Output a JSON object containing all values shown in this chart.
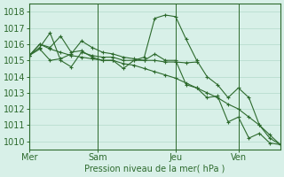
{
  "bg_color": "#d8f0e8",
  "grid_color": "#b8ddd0",
  "line_color": "#2d6a2d",
  "marker": "+",
  "xlabel": "Pression niveau de la mer( hPa )",
  "ylim": [
    1009.5,
    1018.5
  ],
  "yticks": [
    1010,
    1011,
    1012,
    1013,
    1014,
    1015,
    1016,
    1017,
    1018
  ],
  "day_labels": [
    "Mer",
    "Sam",
    "Jeu",
    "Ven"
  ],
  "day_positions": [
    0.0,
    0.273,
    0.583,
    0.833
  ],
  "xlim": [
    0,
    1.0
  ],
  "series": [
    {
      "x": [
        0.0,
        0.042,
        0.083,
        0.125,
        0.167,
        0.208,
        0.25,
        0.292,
        0.333,
        0.375,
        0.417,
        0.458,
        0.5,
        0.542,
        0.583,
        0.625,
        0.667,
        0.708,
        0.75,
        0.792,
        0.833,
        0.875,
        0.917,
        0.958,
        1.0
      ],
      "y": [
        1015.3,
        1016.0,
        1015.7,
        1015.5,
        1015.3,
        1015.2,
        1015.1,
        1015.0,
        1015.0,
        1014.8,
        1014.7,
        1014.5,
        1014.3,
        1014.1,
        1013.9,
        1013.6,
        1013.3,
        1013.0,
        1012.7,
        1012.3,
        1012.0,
        1011.5,
        1011.0,
        1010.4,
        1009.8
      ]
    },
    {
      "x": [
        0.0,
        0.042,
        0.083,
        0.125,
        0.167,
        0.208,
        0.25,
        0.292,
        0.333,
        0.375,
        0.417,
        0.458,
        0.5,
        0.542,
        0.583,
        0.625,
        0.667
      ],
      "y": [
        1015.3,
        1015.7,
        1015.0,
        1015.1,
        1015.4,
        1016.2,
        1015.8,
        1015.5,
        1015.4,
        1015.2,
        1015.1,
        1015.0,
        1015.0,
        1014.9,
        1014.9,
        1014.85,
        1014.9
      ]
    },
    {
      "x": [
        0.0,
        0.042,
        0.083,
        0.125,
        0.167,
        0.208,
        0.25,
        0.292,
        0.333,
        0.375,
        0.417,
        0.458,
        0.5,
        0.542,
        0.583,
        0.625,
        0.667,
        0.708,
        0.75,
        0.792,
        0.833,
        0.875,
        0.917,
        0.958,
        1.0
      ],
      "y": [
        1015.3,
        1016.0,
        1015.8,
        1016.5,
        1015.5,
        1015.6,
        1015.2,
        1015.0,
        1015.0,
        1014.5,
        1015.0,
        1015.2,
        1017.6,
        1017.8,
        1017.7,
        1016.3,
        1015.0,
        1014.0,
        1013.5,
        1012.7,
        1013.3,
        1012.7,
        1011.0,
        1010.2,
        1009.8
      ]
    },
    {
      "x": [
        0.0,
        0.042,
        0.083,
        0.125,
        0.167,
        0.208,
        0.25,
        0.292,
        0.333,
        0.375,
        0.417,
        0.458,
        0.5,
        0.542,
        0.583,
        0.625,
        0.667,
        0.708,
        0.75,
        0.792,
        0.833,
        0.875,
        0.917,
        0.958,
        1.0
      ],
      "y": [
        1015.3,
        1015.8,
        1016.7,
        1015.0,
        1014.6,
        1015.5,
        1015.3,
        1015.2,
        1015.2,
        1015.0,
        1015.0,
        1015.0,
        1015.4,
        1015.0,
        1015.0,
        1013.5,
        1013.3,
        1012.7,
        1012.8,
        1011.2,
        1011.5,
        1010.2,
        1010.5,
        1009.9,
        1009.8
      ]
    }
  ]
}
